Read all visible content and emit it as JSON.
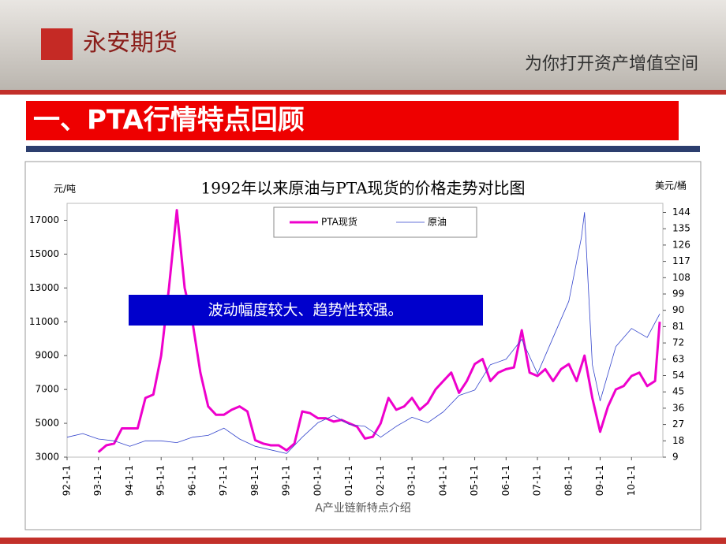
{
  "header": {
    "brand": "永安期货",
    "slogan": "为你打开资产增值空间",
    "section_title": "一、PTA行情特点回顾",
    "footer": "A产业链新特点介绍"
  },
  "chart_data": {
    "type": "line",
    "title": "1992年以来原油与PTA现货的价格走势对比图",
    "ylabel": "元/吨",
    "y2label": "美元/桶",
    "annotation": "波动幅度较大、趋势性较强。",
    "xlim": [
      1992,
      2011
    ],
    "xticks": [
      {
        "value": 1992,
        "label": "92-1-1"
      },
      {
        "value": 1993,
        "label": "93-1-1"
      },
      {
        "value": 1994,
        "label": "94-1-1"
      },
      {
        "value": 1995,
        "label": "95-1-1"
      },
      {
        "value": 1996,
        "label": "96-1-1"
      },
      {
        "value": 1997,
        "label": "97-1-1"
      },
      {
        "value": 1998,
        "label": "98-1-1"
      },
      {
        "value": 1999,
        "label": "99-1-1"
      },
      {
        "value": 2000,
        "label": "00-1-1"
      },
      {
        "value": 2001,
        "label": "01-1-1"
      },
      {
        "value": 2002,
        "label": "02-1-1"
      },
      {
        "value": 2003,
        "label": "03-1-1"
      },
      {
        "value": 2004,
        "label": "04-1-1"
      },
      {
        "value": 2005,
        "label": "05-1-1"
      },
      {
        "value": 2006,
        "label": "06-1-1"
      },
      {
        "value": 2007,
        "label": "07-1-1"
      },
      {
        "value": 2008,
        "label": "08-1-1"
      },
      {
        "value": 2009,
        "label": "09-1-1"
      },
      {
        "value": 2010,
        "label": "10-1-1"
      }
    ],
    "ylim": [
      3000,
      18000
    ],
    "yticks": [
      3000,
      5000,
      7000,
      9000,
      11000,
      13000,
      15000,
      17000
    ],
    "y2lim": [
      9,
      149
    ],
    "y2ticks": [
      9,
      18,
      27,
      36,
      45,
      54,
      63,
      72,
      81,
      90,
      99,
      108,
      117,
      126,
      135,
      144
    ],
    "series": [
      {
        "name": "PTA现货",
        "color": "#ee00cc",
        "axis": "y",
        "x": [
          1993,
          1993.25,
          1993.5,
          1993.75,
          1994,
          1994.25,
          1994.5,
          1994.75,
          1995,
          1995.25,
          1995.5,
          1995.75,
          1996,
          1996.25,
          1996.5,
          1996.75,
          1997,
          1997.25,
          1997.5,
          1997.75,
          1998,
          1998.25,
          1998.5,
          1998.75,
          1999,
          1999.25,
          1999.5,
          1999.75,
          2000,
          2000.25,
          2000.5,
          2000.75,
          2001,
          2001.25,
          2001.5,
          2001.75,
          2002,
          2002.25,
          2002.5,
          2002.75,
          2003,
          2003.25,
          2003.5,
          2003.75,
          2004,
          2004.25,
          2004.5,
          2004.75,
          2005,
          2005.25,
          2005.5,
          2005.75,
          2006,
          2006.25,
          2006.5,
          2006.75,
          2007,
          2007.25,
          2007.5,
          2007.75,
          2008,
          2008.25,
          2008.5,
          2008.75,
          2009,
          2009.25,
          2009.5,
          2009.75,
          2010,
          2010.25,
          2010.5,
          2010.75,
          2010.9
        ],
        "values": [
          3300,
          3700,
          3800,
          4700,
          4700,
          4700,
          6500,
          6700,
          9000,
          13000,
          17600,
          13000,
          11000,
          8000,
          6000,
          5500,
          5500,
          5800,
          6000,
          5700,
          4000,
          3800,
          3700,
          3700,
          3400,
          3800,
          5700,
          5600,
          5300,
          5300,
          5100,
          5200,
          5000,
          4800,
          4100,
          4200,
          5000,
          6500,
          5800,
          6000,
          6500,
          5800,
          6200,
          7000,
          7500,
          8000,
          6800,
          7500,
          8500,
          8800,
          7500,
          8000,
          8200,
          8300,
          10500,
          8000,
          7800,
          8200,
          7500,
          8200,
          8500,
          7500,
          9000,
          6500,
          4500,
          6000,
          7000,
          7200,
          7800,
          8000,
          7200,
          7500,
          11000
        ]
      },
      {
        "name": "原油",
        "color": "#3344cc",
        "axis": "y2",
        "x": [
          1992,
          1992.5,
          1993,
          1993.5,
          1994,
          1994.5,
          1995,
          1995.5,
          1996,
          1996.5,
          1997,
          1997.5,
          1998,
          1998.5,
          1999,
          1999.5,
          2000,
          2000.5,
          2001,
          2001.5,
          2002,
          2002.5,
          2003,
          2003.5,
          2004,
          2004.5,
          2005,
          2005.5,
          2006,
          2006.5,
          2007,
          2007.5,
          2008,
          2008.4,
          2008.5,
          2008.75,
          2009,
          2009.5,
          2010,
          2010.5,
          2010.9
        ],
        "values": [
          20,
          22,
          19,
          18,
          15,
          18,
          18,
          17,
          20,
          21,
          25,
          19,
          15,
          13,
          11,
          20,
          28,
          32,
          27,
          26,
          20,
          26,
          31,
          28,
          34,
          43,
          46,
          60,
          63,
          74,
          55,
          75,
          95,
          130,
          144,
          60,
          40,
          70,
          80,
          75,
          88
        ]
      }
    ]
  }
}
